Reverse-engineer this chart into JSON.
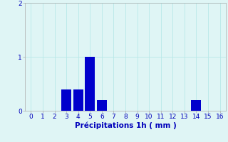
{
  "categories": [
    0,
    1,
    2,
    3,
    4,
    5,
    6,
    7,
    8,
    9,
    10,
    11,
    12,
    13,
    14,
    15,
    16
  ],
  "values": [
    0,
    0,
    0,
    0.4,
    0.4,
    1.0,
    0.2,
    0,
    0,
    0,
    0,
    0,
    0,
    0,
    0.2,
    0,
    0
  ],
  "bar_color": "#0000cc",
  "background_color": "#dff5f5",
  "grid_color": "#b8e8e8",
  "xlabel": "Précipitations 1h ( mm )",
  "xlabel_color": "#0000bb",
  "tick_color": "#0000bb",
  "ylim": [
    0,
    2
  ],
  "yticks": [
    0,
    1,
    2
  ],
  "xlim": [
    -0.5,
    16.5
  ],
  "xticks": [
    0,
    1,
    2,
    3,
    4,
    5,
    6,
    7,
    8,
    9,
    10,
    11,
    12,
    13,
    14,
    15,
    16
  ],
  "bar_width": 0.85,
  "tick_fontsize": 6.5,
  "xlabel_fontsize": 7.5
}
